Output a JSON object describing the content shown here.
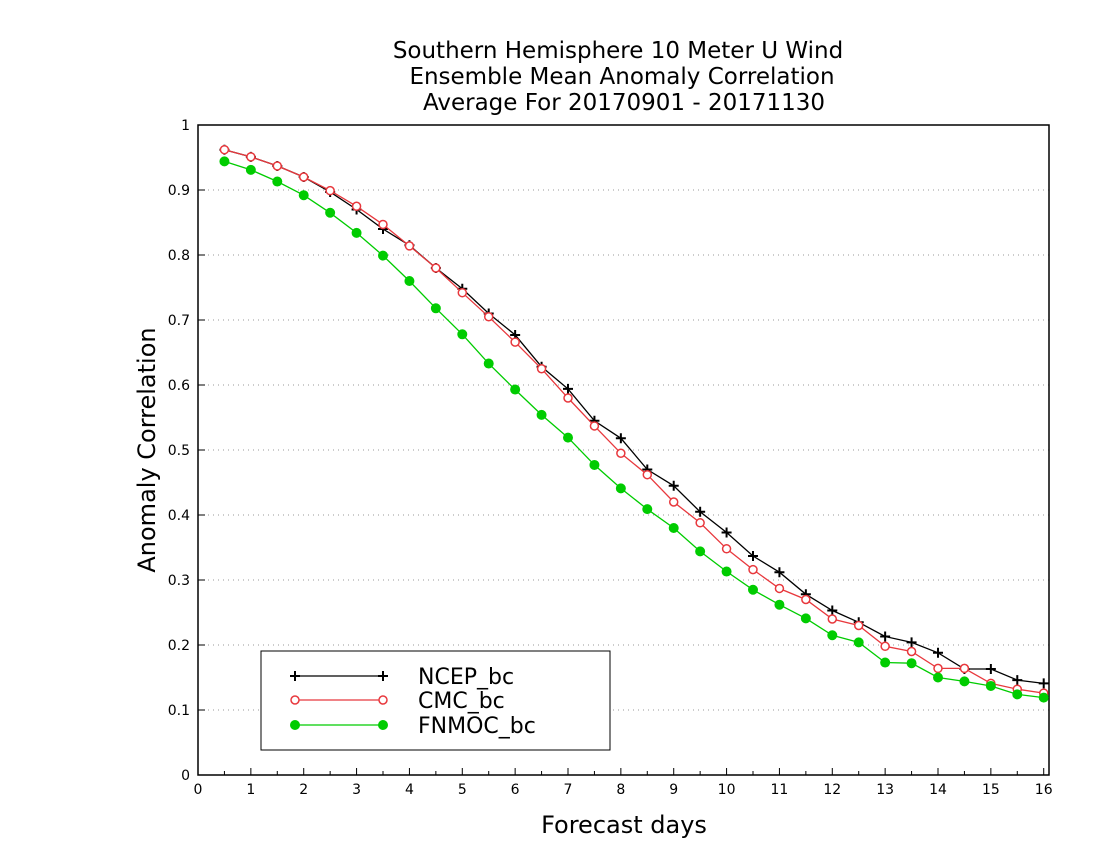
{
  "chart_data": {
    "type": "line",
    "title_lines": [
      "Southern Hemisphere 10 Meter U Wind",
      "Ensemble Mean Anomaly Correlation",
      "Average For 20170901 - 20171130"
    ],
    "xlabel": "Forecast days",
    "ylabel": "Anomaly Correlation",
    "xlim": [
      0,
      16.1
    ],
    "ylim": [
      0,
      1
    ],
    "xticks": [
      0,
      1,
      2,
      3,
      4,
      5,
      6,
      7,
      8,
      9,
      10,
      11,
      12,
      13,
      14,
      15,
      16
    ],
    "yticks": [
      0,
      0.1,
      0.2,
      0.3,
      0.4,
      0.5,
      0.6,
      0.7,
      0.8,
      0.9,
      1
    ],
    "ytick_labels": [
      "0",
      "0.1",
      "0.2",
      "0.3",
      "0.4",
      "0.5",
      "0.6",
      "0.7",
      "0.8",
      "0.9",
      "1"
    ],
    "grid": "horizontal dotted",
    "legend_position": "bottom-left",
    "x": [
      0.5,
      1,
      1.5,
      2,
      2.5,
      3,
      3.5,
      4,
      4.5,
      5,
      5.5,
      6,
      6.5,
      7,
      7.5,
      8,
      8.5,
      9,
      9.5,
      10,
      10.5,
      11,
      11.5,
      12,
      12.5,
      13,
      13.5,
      14,
      14.5,
      15,
      15.5,
      16
    ],
    "series": [
      {
        "name": "NCEP_bc",
        "color": "#000000",
        "marker": "plus",
        "values": [
          0.962,
          0.951,
          0.937,
          0.92,
          0.897,
          0.87,
          0.84,
          0.815,
          0.78,
          0.748,
          0.71,
          0.677,
          0.628,
          0.594,
          0.545,
          0.518,
          0.47,
          0.445,
          0.405,
          0.373,
          0.337,
          0.312,
          0.278,
          0.253,
          0.235,
          0.213,
          0.204,
          0.188,
          0.163,
          0.163,
          0.146,
          0.141
        ]
      },
      {
        "name": "CMC_bc",
        "color": "#e8383d",
        "marker": "open-circle",
        "values": [
          0.962,
          0.951,
          0.937,
          0.92,
          0.899,
          0.875,
          0.847,
          0.814,
          0.78,
          0.742,
          0.705,
          0.666,
          0.625,
          0.58,
          0.537,
          0.495,
          0.462,
          0.42,
          0.388,
          0.348,
          0.316,
          0.287,
          0.27,
          0.24,
          0.23,
          0.198,
          0.19,
          0.164,
          0.164,
          0.141,
          0.132,
          0.126
        ]
      },
      {
        "name": "FNMOC_bc",
        "color": "#00cc00",
        "marker": "filled-circle",
        "values": [
          0.944,
          0.931,
          0.913,
          0.892,
          0.865,
          0.834,
          0.799,
          0.76,
          0.718,
          0.678,
          0.633,
          0.593,
          0.554,
          0.519,
          0.477,
          0.441,
          0.409,
          0.38,
          0.344,
          0.313,
          0.285,
          0.262,
          0.241,
          0.215,
          0.204,
          0.173,
          0.172,
          0.15,
          0.144,
          0.137,
          0.124,
          0.119
        ]
      }
    ]
  }
}
